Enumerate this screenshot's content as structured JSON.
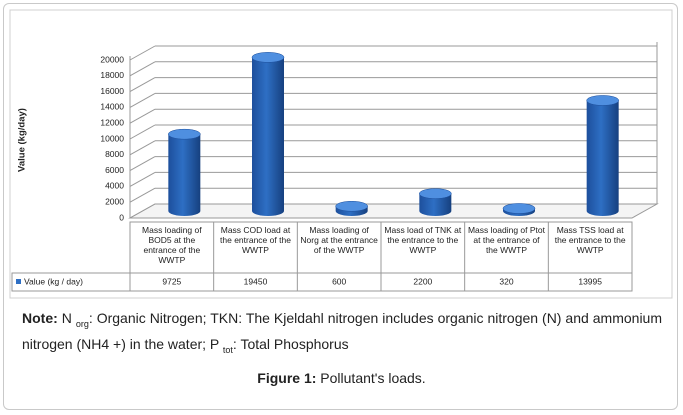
{
  "chart_data": {
    "type": "bar3d",
    "ylabel": "Value (kg/day)",
    "categories": [
      "Mass loading of BOD5 at the entrance of the WWTP",
      "Mass COD load at the entrance of the WWTP",
      "Mass loading of Norg at the entrance of the WWTP",
      "Mass load of TNK at the entrance to the WWTP",
      "Mass loading of Ptot at the entrance of the WWTP",
      "Mass TSS load at the entrance to the WWTP"
    ],
    "series": [
      {
        "name": "Value (kg / day)",
        "color": "#2e6fc4",
        "values": [
          9725,
          19450,
          600,
          2200,
          320,
          13995
        ]
      }
    ],
    "ylim": [
      0,
      20000
    ],
    "yticks": [
      0,
      2000,
      4000,
      6000,
      8000,
      10000,
      12000,
      14000,
      16000,
      18000,
      20000
    ],
    "grid": true
  },
  "note": {
    "label": "Note:",
    "parts": [
      " N ",
      "org",
      ": Organic Nitrogen; TKN: The Kjeldahl nitrogen includes organic nitrogen (N) and ammonium nitrogen (NH4 +) in the water; P ",
      "tot",
      ": Total Phosphorus"
    ]
  },
  "caption": {
    "label": "Figure 1:",
    "text": "Pollutant's loads."
  }
}
